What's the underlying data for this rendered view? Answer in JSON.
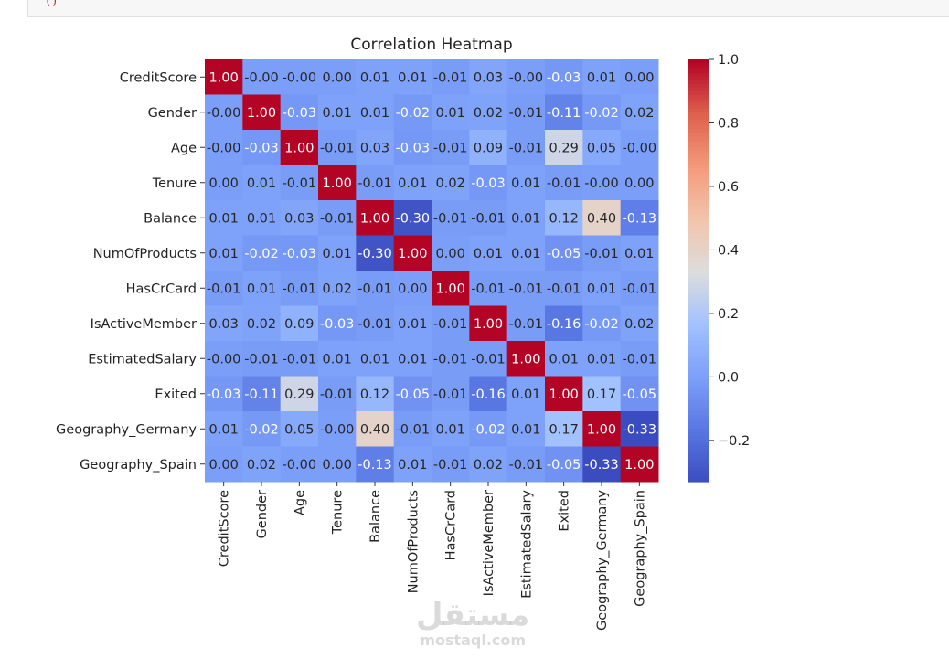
{
  "top_cell": {
    "code_fragment": "()"
  },
  "watermark": {
    "arabic": "مستقل",
    "latin": "mostaql.com"
  },
  "chart_data": {
    "type": "heatmap",
    "title": "Correlation Heatmap",
    "colormap": "coolwarm",
    "vmin": -0.33,
    "vmax": 1.0,
    "colorbar_ticks": [
      "1.0",
      "0.8",
      "0.6",
      "0.4",
      "0.2",
      "0.0",
      "−0.2"
    ],
    "colorbar_tick_values": [
      1.0,
      0.8,
      0.6,
      0.4,
      0.2,
      0.0,
      -0.2
    ],
    "labels": [
      "CreditScore",
      "Gender",
      "Age",
      "Tenure",
      "Balance",
      "NumOfProducts",
      "HasCrCard",
      "IsActiveMember",
      "EstimatedSalary",
      "Exited",
      "Geography_Germany",
      "Geography_Spain"
    ],
    "values": [
      [
        "1.00",
        "-0.00",
        "-0.00",
        "0.00",
        "0.01",
        "0.01",
        "-0.01",
        "0.03",
        "-0.00",
        "-0.03",
        "0.01",
        "0.00"
      ],
      [
        "-0.00",
        "1.00",
        "-0.03",
        "0.01",
        "0.01",
        "-0.02",
        "0.01",
        "0.02",
        "-0.01",
        "-0.11",
        "-0.02",
        "0.02"
      ],
      [
        "-0.00",
        "-0.03",
        "1.00",
        "-0.01",
        "0.03",
        "-0.03",
        "-0.01",
        "0.09",
        "-0.01",
        "0.29",
        "0.05",
        "-0.00"
      ],
      [
        "0.00",
        "0.01",
        "-0.01",
        "1.00",
        "-0.01",
        "0.01",
        "0.02",
        "-0.03",
        "0.01",
        "-0.01",
        "-0.00",
        "0.00"
      ],
      [
        "0.01",
        "0.01",
        "0.03",
        "-0.01",
        "1.00",
        "-0.30",
        "-0.01",
        "-0.01",
        "0.01",
        "0.12",
        "0.40",
        "-0.13"
      ],
      [
        "0.01",
        "-0.02",
        "-0.03",
        "0.01",
        "-0.30",
        "1.00",
        "0.00",
        "0.01",
        "0.01",
        "-0.05",
        "-0.01",
        "0.01"
      ],
      [
        "-0.01",
        "0.01",
        "-0.01",
        "0.02",
        "-0.01",
        "0.00",
        "1.00",
        "-0.01",
        "-0.01",
        "-0.01",
        "0.01",
        "-0.01"
      ],
      [
        "0.03",
        "0.02",
        "0.09",
        "-0.03",
        "-0.01",
        "0.01",
        "-0.01",
        "1.00",
        "-0.01",
        "-0.16",
        "-0.02",
        "0.02"
      ],
      [
        "-0.00",
        "-0.01",
        "-0.01",
        "0.01",
        "0.01",
        "0.01",
        "-0.01",
        "-0.01",
        "1.00",
        "0.01",
        "0.01",
        "-0.01"
      ],
      [
        "-0.03",
        "-0.11",
        "0.29",
        "-0.01",
        "0.12",
        "-0.05",
        "-0.01",
        "-0.16",
        "0.01",
        "1.00",
        "0.17",
        "-0.05"
      ],
      [
        "0.01",
        "-0.02",
        "0.05",
        "-0.00",
        "0.40",
        "-0.01",
        "0.01",
        "-0.02",
        "0.01",
        "0.17",
        "1.00",
        "-0.33"
      ],
      [
        "0.00",
        "0.02",
        "-0.00",
        "0.00",
        "-0.13",
        "0.01",
        "-0.01",
        "0.02",
        "-0.01",
        "-0.05",
        "-0.33",
        "1.00"
      ]
    ]
  }
}
